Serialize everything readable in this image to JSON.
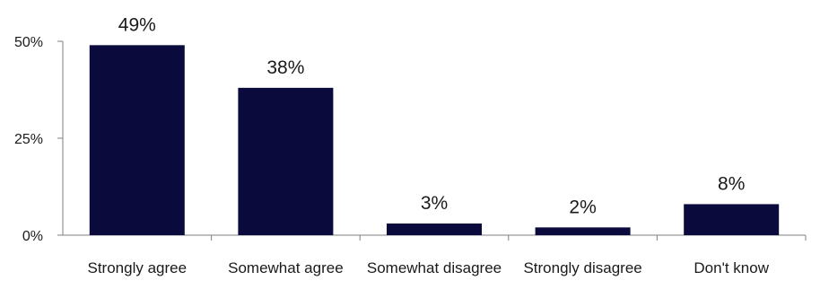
{
  "chart_data": {
    "type": "bar",
    "categories": [
      "Strongly agree",
      "Somewhat agree",
      "Somewhat disagree",
      "Strongly disagree",
      "Don't know"
    ],
    "values": [
      49,
      38,
      3,
      2,
      8
    ],
    "value_labels": [
      "49%",
      "38%",
      "3%",
      "2%",
      "8%"
    ],
    "ylim": [
      0,
      50
    ],
    "yticks": [
      0,
      25,
      50
    ],
    "ytick_labels": [
      "0%",
      "25%",
      "50%"
    ],
    "bar_color": "#0a0a3c",
    "grid": false,
    "title": "",
    "xlabel": "",
    "ylabel": ""
  }
}
